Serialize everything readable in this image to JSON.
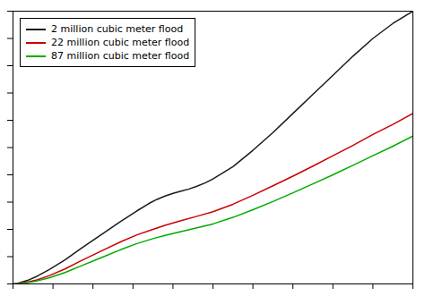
{
  "chart_data": {
    "type": "line",
    "title": "",
    "series": [
      {
        "name": "2 million cubic meter flood",
        "color": "#1a1a1a",
        "x": [
          0,
          0.01,
          0.02,
          0.04,
          0.06,
          0.09,
          0.13,
          0.17,
          0.22,
          0.27,
          0.31,
          0.34,
          0.36,
          0.38,
          0.4,
          0.42,
          0.44,
          0.46,
          0.48,
          0.5,
          0.55,
          0.6,
          0.65,
          0.7,
          0.75,
          0.8,
          0.85,
          0.9,
          0.95,
          1.0
        ],
        "values": [
          0,
          0.002,
          0.006,
          0.015,
          0.028,
          0.052,
          0.088,
          0.13,
          0.18,
          0.23,
          0.268,
          0.295,
          0.31,
          0.322,
          0.332,
          0.34,
          0.348,
          0.358,
          0.37,
          0.385,
          0.43,
          0.49,
          0.555,
          0.625,
          0.695,
          0.765,
          0.835,
          0.9,
          0.955,
          1.0
        ]
      },
      {
        "name": "22 million cubic meter flood",
        "color": "#cc0000",
        "x": [
          0,
          0.01,
          0.02,
          0.04,
          0.06,
          0.09,
          0.13,
          0.17,
          0.22,
          0.27,
          0.31,
          0.35,
          0.38,
          0.42,
          0.46,
          0.5,
          0.55,
          0.6,
          0.65,
          0.7,
          0.75,
          0.8,
          0.85,
          0.9,
          0.95,
          1.0
        ],
        "values": [
          0,
          0.001,
          0.003,
          0.008,
          0.015,
          0.03,
          0.055,
          0.085,
          0.12,
          0.155,
          0.18,
          0.2,
          0.215,
          0.232,
          0.248,
          0.265,
          0.292,
          0.325,
          0.36,
          0.395,
          0.432,
          0.47,
          0.508,
          0.548,
          0.585,
          0.625
        ]
      },
      {
        "name": "87 million cubic meter flood",
        "color": "#00aa00",
        "x": [
          0,
          0.01,
          0.02,
          0.04,
          0.06,
          0.09,
          0.13,
          0.17,
          0.22,
          0.27,
          0.31,
          0.35,
          0.38,
          0.42,
          0.46,
          0.5,
          0.55,
          0.6,
          0.65,
          0.7,
          0.75,
          0.8,
          0.85,
          0.9,
          0.95,
          1.0
        ],
        "values": [
          0,
          0.001,
          0.002,
          0.006,
          0.011,
          0.022,
          0.042,
          0.066,
          0.096,
          0.126,
          0.148,
          0.166,
          0.178,
          0.192,
          0.206,
          0.22,
          0.244,
          0.272,
          0.302,
          0.334,
          0.367,
          0.4,
          0.435,
          0.47,
          0.505,
          0.542
        ]
      }
    ],
    "xlim": [
      0,
      1
    ],
    "ylim": [
      0,
      1
    ],
    "xticks": [
      0,
      0.1,
      0.2,
      0.3,
      0.4,
      0.5,
      0.6,
      0.7,
      0.8,
      0.9,
      1
    ],
    "yticks": [
      0,
      0.1,
      0.2,
      0.3,
      0.4,
      0.5,
      0.6,
      0.7,
      0.8,
      0.9,
      1
    ],
    "tick_labels": false,
    "grid": false,
    "legend": "upper left"
  }
}
